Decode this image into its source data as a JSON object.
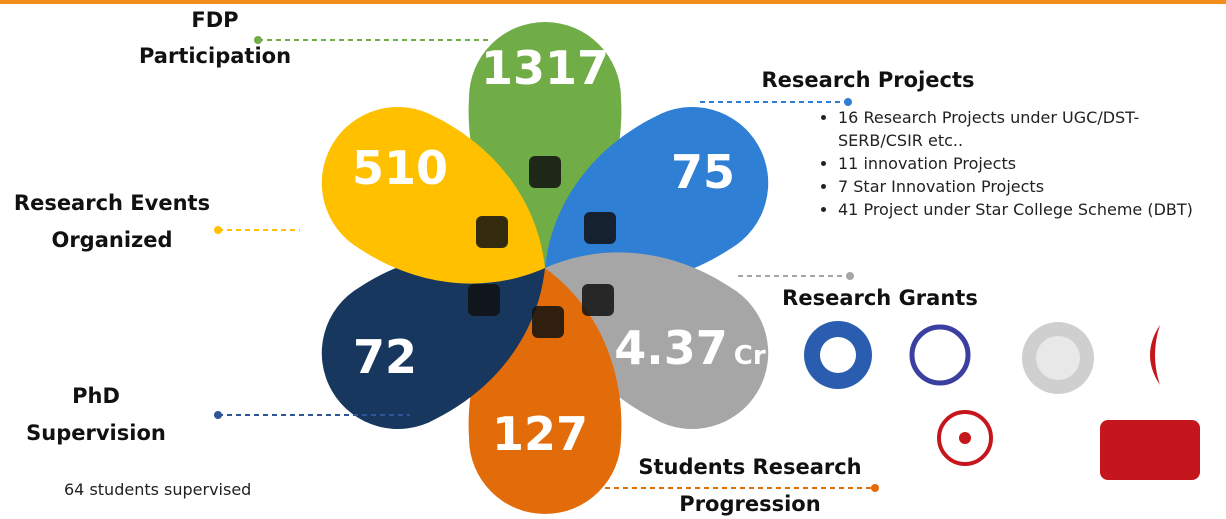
{
  "petals": [
    {
      "value": "1317",
      "label": [
        "FDP",
        "Participation"
      ],
      "color": "#70ad47"
    },
    {
      "value": "75",
      "label": [
        "Research Projects"
      ],
      "color": "#2f7fd4"
    },
    {
      "value": "4.37",
      "unit": "Cr",
      "label": [
        "Research Grants"
      ],
      "color": "#a6a6a6"
    },
    {
      "value": "127",
      "label": [
        "Students Research",
        "Progression"
      ],
      "color": "#e36c0a"
    },
    {
      "value": "72",
      "label": [
        "PhD",
        "Supervision"
      ],
      "color": "#17375e"
    },
    {
      "value": "510",
      "label": [
        "Research Events",
        "Organized"
      ],
      "color": "#ffc000"
    }
  ],
  "projects": [
    "16 Research Projects under UGC/DST-SERB/CSIR etc..",
    "11 innovation Projects",
    "7 Star Innovation Projects",
    "41 Project under Star College Scheme (DBT)"
  ],
  "phd_note": "64 students supervised"
}
